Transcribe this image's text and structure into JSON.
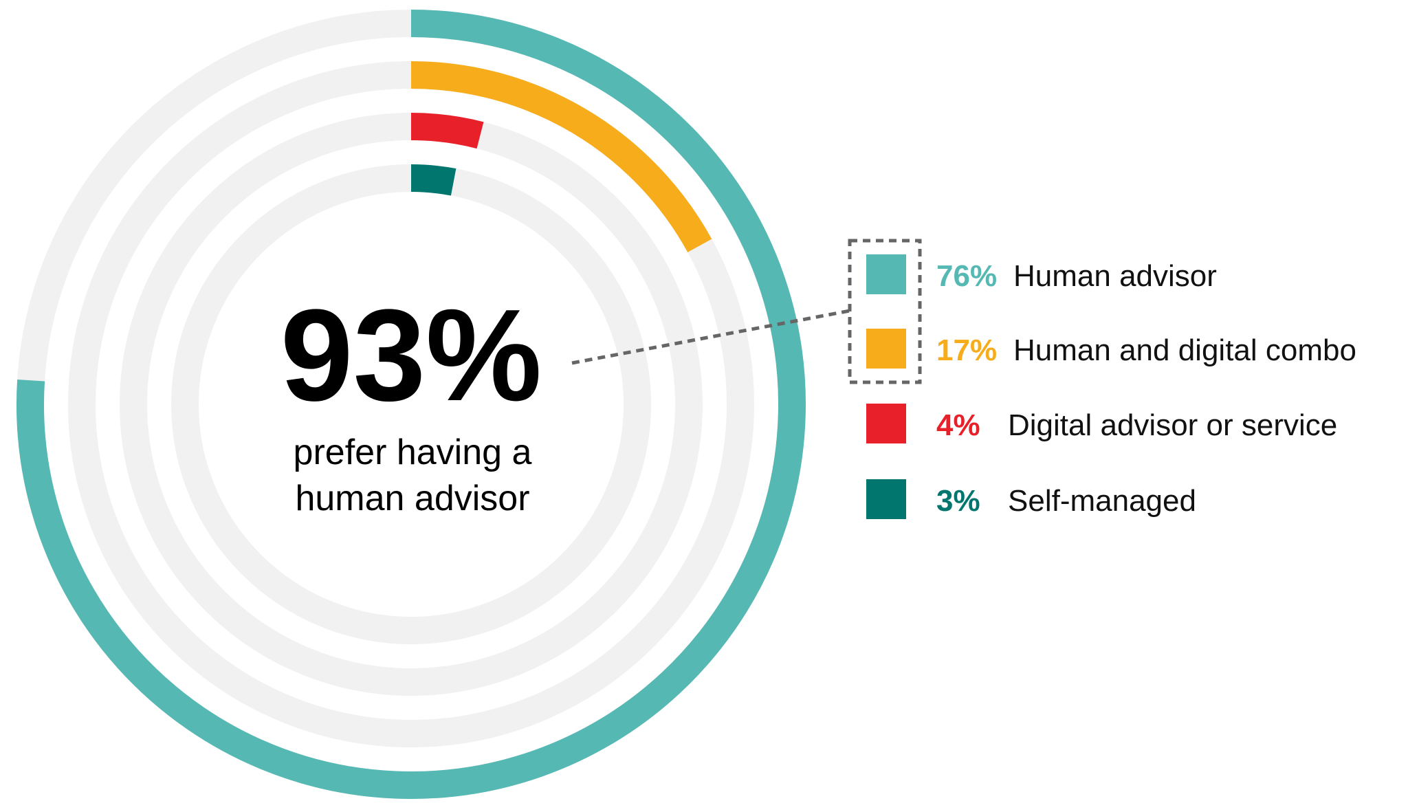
{
  "chart_data": {
    "type": "radial-bar",
    "title": "",
    "center": {
      "value": "93%",
      "caption_lines": [
        "prefer having a",
        "human advisor"
      ]
    },
    "series": [
      {
        "name": "Human advisor",
        "value": 76,
        "label": "76%",
        "color": "#55b8b3"
      },
      {
        "name": "Human and digital combo",
        "value": 17,
        "label": "17%",
        "color": "#f7ac1c"
      },
      {
        "name": "Digital advisor or service",
        "value": 4,
        "label": "4%",
        "color": "#e8202a"
      },
      {
        "name": "Self-managed",
        "value": 3,
        "label": "3%",
        "color": "#00766f"
      }
    ],
    "max": 100,
    "track_color": "#f1f1f1",
    "highlighted_series": [
      "Human advisor",
      "Human and digital combo"
    ],
    "legend_position": "right"
  }
}
